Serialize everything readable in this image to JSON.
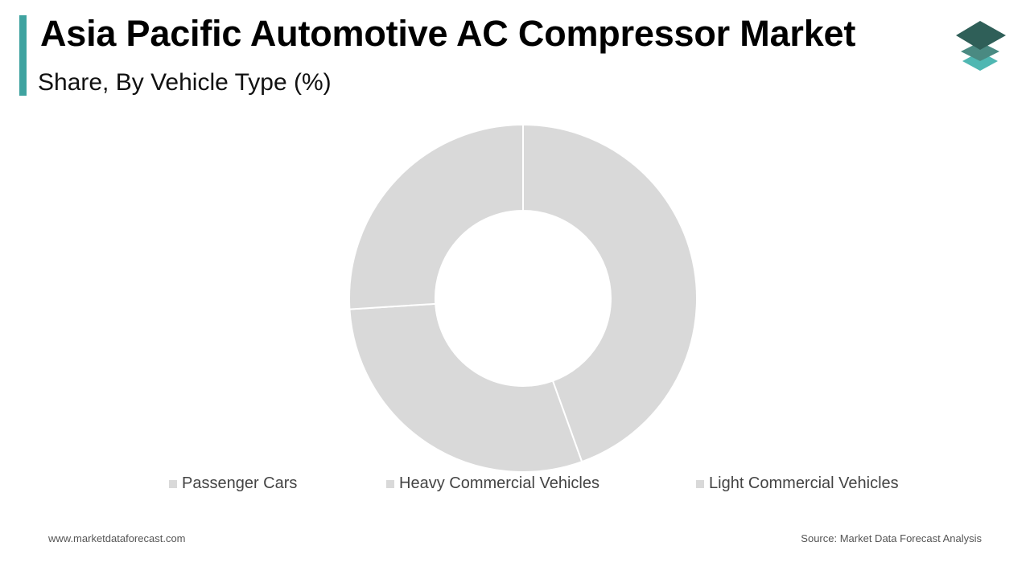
{
  "header": {
    "title": "Asia Pacific Automotive AC Compressor Market",
    "subtitle": "Share, By Vehicle Type (%)"
  },
  "logo": {
    "icon": "stacked-layers-logo-icon"
  },
  "colors": {
    "accent": "#3fa3a0",
    "logo_top": "#2f5f58",
    "logo_mid": "#4a8a82",
    "logo_bottom": "#4fb7b2",
    "slice": "#d9d9d9",
    "separator": "#ffffff"
  },
  "chart_data": {
    "type": "pie",
    "donut": true,
    "categories": [
      "Passenger Cars",
      "Heavy Commercial Vehicles",
      "Light Commercial Vehicles"
    ],
    "values": [
      44.5,
      29.5,
      26.0
    ],
    "legend": {
      "position": "bottom",
      "labels": [
        "Passenger Cars",
        "Heavy Commercial Vehicles",
        "Light Commercial Vehicles"
      ]
    }
  },
  "footer": {
    "website": "www.marketdataforecast.com",
    "source": "Source: Market Data Forecast Analysis"
  }
}
